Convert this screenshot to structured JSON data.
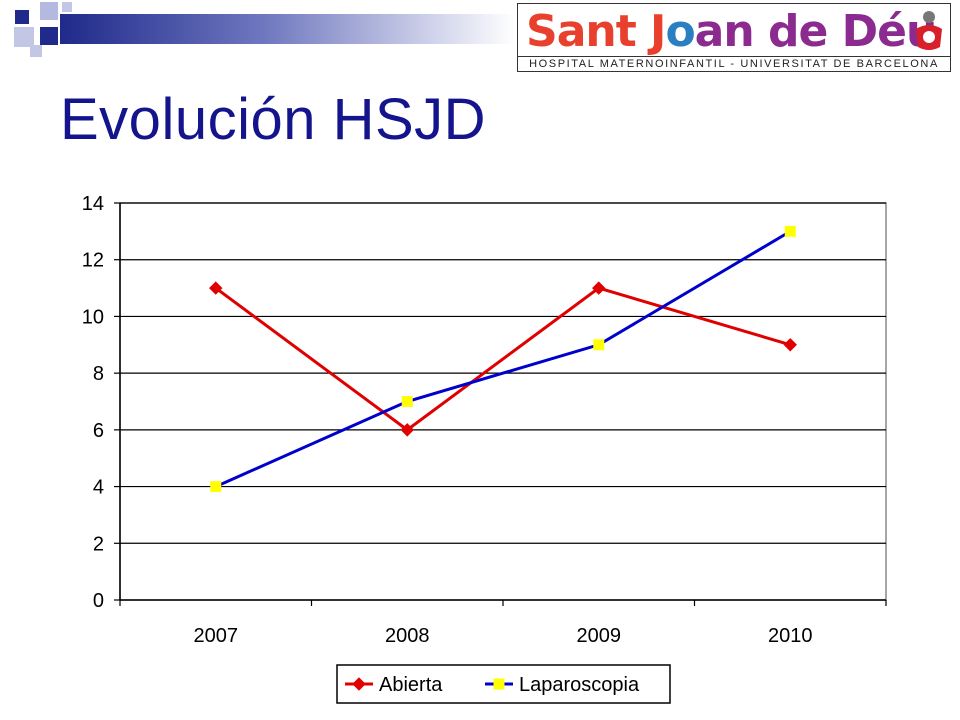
{
  "slide": {
    "title": "Evolución HSJD"
  },
  "logo": {
    "wordmark": [
      "Sant J",
      "o",
      "an de Déu"
    ],
    "subtitle": "HOSPITAL MATERNOINFANTIL - UNIVERSITAT DE BARCELONA",
    "colors": {
      "sant": "#e8402c",
      "joan": "#2a7fc2",
      "de": "#2f9a3e",
      "deu": "#8b2b8f"
    }
  },
  "chart_data": {
    "type": "line",
    "categories": [
      "2007",
      "2008",
      "2009",
      "2010"
    ],
    "series": [
      {
        "name": "Abierta",
        "values": [
          11,
          6,
          11,
          9
        ],
        "color": "#e00000",
        "marker": "diamond",
        "marker_color": "#e00000"
      },
      {
        "name": "Laparoscopia",
        "values": [
          4,
          7,
          9,
          13
        ],
        "color": "#0000cc",
        "marker": "square",
        "marker_color": "#ffff00"
      }
    ],
    "title": "",
    "xlabel": "",
    "ylabel": "",
    "ylim": [
      0,
      14
    ],
    "yticks": [
      "0",
      "2",
      "4",
      "6",
      "8",
      "10",
      "12",
      "14"
    ],
    "grid": true,
    "legend": "bottom"
  }
}
